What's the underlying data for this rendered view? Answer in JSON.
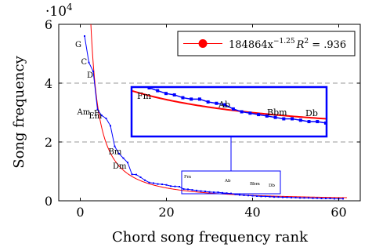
{
  "chart_data": {
    "type": "line",
    "xlabel": "Chord song frequency rank",
    "ylabel": "Song frequency",
    "y_multiplier": "·10",
    "y_multiplier_exp": "4",
    "xlim": [
      -5,
      65
    ],
    "ylim": [
      0,
      60000
    ],
    "xticks": [
      0,
      20,
      40,
      60
    ],
    "yticks": [
      0,
      2,
      4,
      6
    ],
    "grid": "dashed horizontal lines at y = 2 and y = 4",
    "legend": {
      "placement": "top-right",
      "label": "184864x",
      "label_exp": "−1.25",
      "r2_label": "R",
      "r2_exp": "2",
      "r2_value": " = .936"
    },
    "series": [
      {
        "kind": "observed",
        "color": "#0000ff",
        "x": [
          1,
          2,
          3,
          4,
          5,
          6,
          7,
          8,
          9,
          10,
          11,
          12,
          13,
          14,
          15,
          16,
          17,
          18,
          19,
          20,
          21,
          22,
          23,
          24,
          25,
          26,
          27,
          28,
          29,
          30,
          31,
          32,
          33,
          34,
          35,
          36,
          37,
          38,
          39,
          40,
          41,
          42,
          43,
          44,
          45,
          46,
          47,
          48,
          49,
          50,
          51,
          52,
          53,
          54,
          55,
          56,
          57,
          58,
          59,
          60,
          61
        ],
        "y": [
          56000,
          47000,
          44000,
          31000,
          29000,
          28000,
          25500,
          18500,
          16000,
          14500,
          13000,
          9000,
          8900,
          8000,
          7000,
          6200,
          6000,
          5700,
          5600,
          5400,
          5000,
          4900,
          4800,
          4000,
          3900,
          3700,
          3500,
          3300,
          3200,
          3000,
          2900,
          2900,
          2700,
          2600,
          2500,
          2200,
          2000,
          1900,
          1800,
          1700,
          1600,
          1500,
          1500,
          1400,
          1300,
          1300,
          1200,
          1200,
          1100,
          1100,
          1000,
          1000,
          1000,
          900,
          900,
          800,
          800,
          800,
          700,
          700,
          700
        ]
      },
      {
        "kind": "fit",
        "color": "#ff0000",
        "formula": "184864 * x^-1.25",
        "x_range": [
          1,
          62
        ]
      }
    ],
    "point_labels": [
      {
        "text": "G",
        "x": 1,
        "y": 56000
      },
      {
        "text": "C",
        "x": 2,
        "y": 47000
      },
      {
        "text": "D",
        "x": 3,
        "y": 44000
      },
      {
        "text": "Am",
        "x": 4,
        "y": 31000
      },
      {
        "text": "F",
        "x": 5,
        "y": 29000
      },
      {
        "text": "Em",
        "x": 6,
        "y": 28000
      },
      {
        "text": "Bm",
        "x": 8,
        "y": 18500
      },
      {
        "text": "Dm",
        "x": 9,
        "y": 16000
      }
    ],
    "inset": {
      "x_range": [
        24,
        47
      ],
      "labels": [
        "Fm",
        "Ab",
        "Bbm",
        "Db"
      ]
    }
  }
}
